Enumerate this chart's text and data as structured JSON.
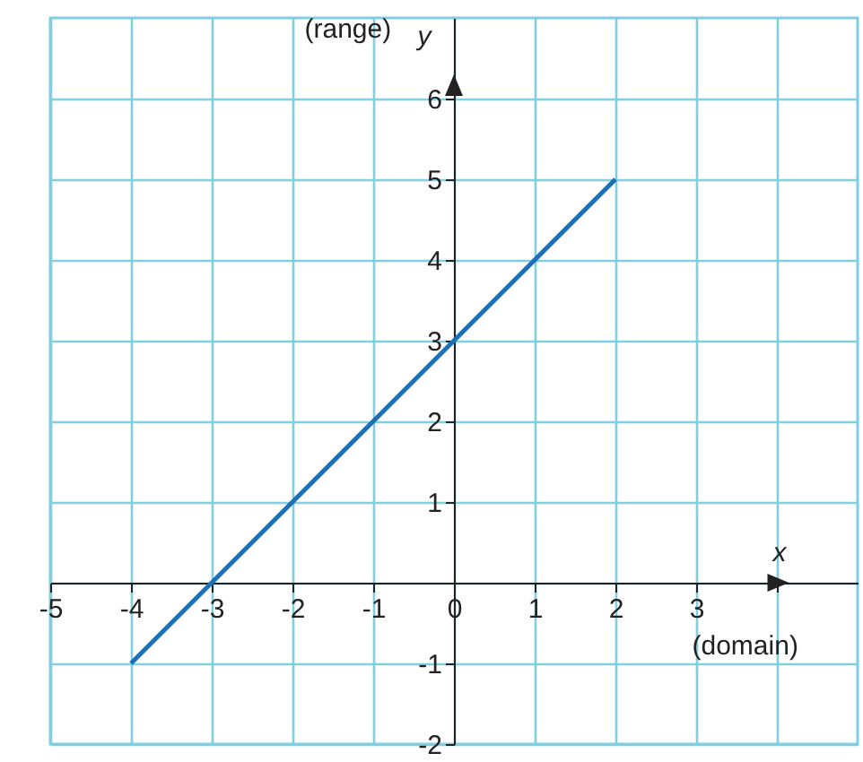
{
  "chart_data": {
    "type": "line",
    "xlabel": "x",
    "ylabel": "y",
    "annotations": [
      "(domain)",
      "(range)"
    ],
    "x": [
      -4,
      2
    ],
    "series": [
      {
        "color": "#1f6fb2",
        "values": [
          -1,
          5
        ]
      }
    ],
    "xlim": [
      -5,
      5
    ],
    "ylim": [
      -2,
      7
    ],
    "xticks": [
      -5,
      -4,
      -3,
      -2,
      -1,
      0,
      1,
      2,
      3,
      {
        "value": 4,
        "label": null
      }
    ],
    "yticks": [
      -2,
      -1,
      {
        "value": 0,
        "label": null
      },
      1,
      2,
      3,
      4,
      5,
      6
    ],
    "grid": true,
    "marker": "none",
    "line_style": "solid"
  }
}
